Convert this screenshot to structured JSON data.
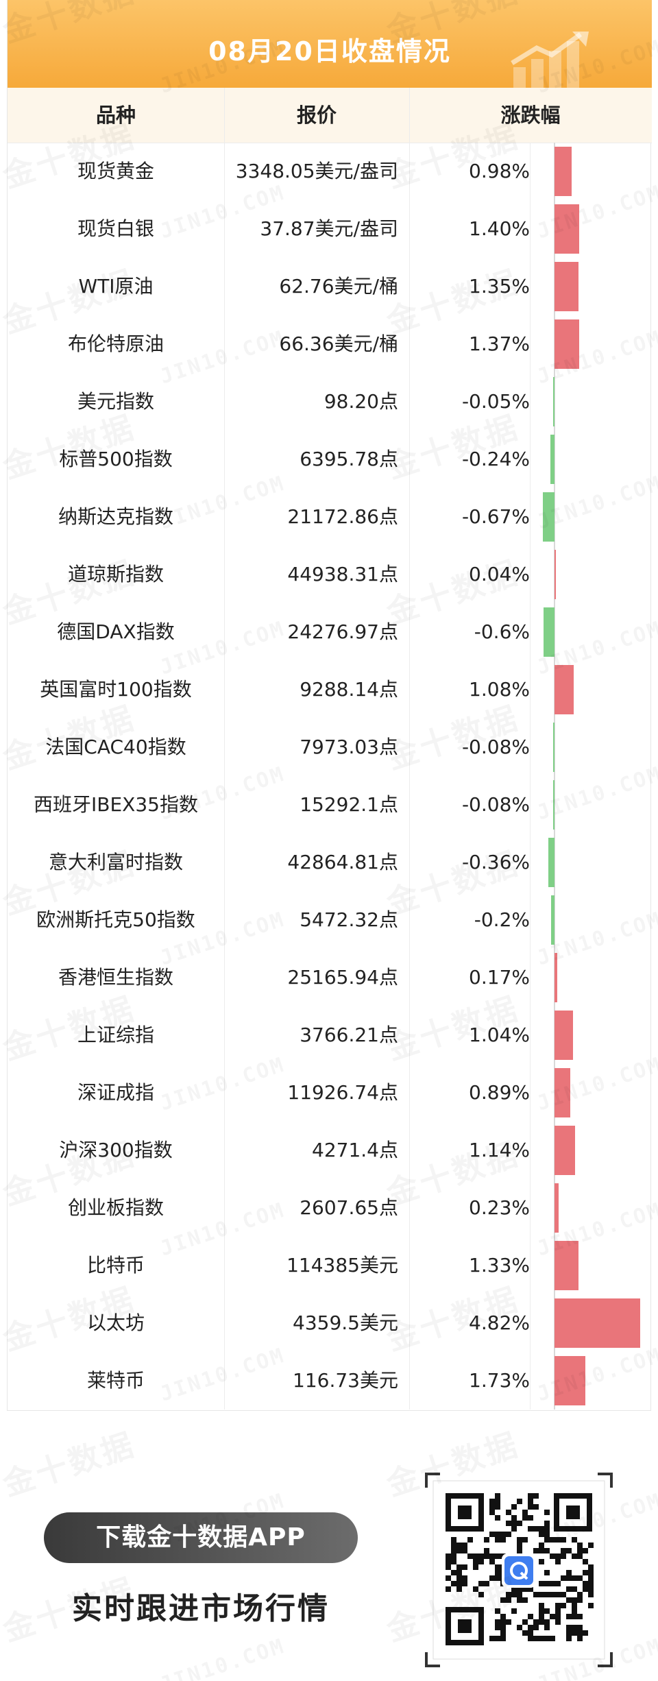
{
  "header": {
    "title": "08月20日收盘情况",
    "bg_colors": [
      "#fcc468",
      "#f6a93a"
    ]
  },
  "table": {
    "headers": [
      "品种",
      "报价",
      "涨跌幅"
    ],
    "rows": [
      {
        "name": "现货黄金",
        "price": "3348.05美元/盎司",
        "change": "0.98%",
        "value": 0.98
      },
      {
        "name": "现货白银",
        "price": "37.87美元/盎司",
        "change": "1.40%",
        "value": 1.4
      },
      {
        "name": "WTI原油",
        "price": "62.76美元/桶",
        "change": "1.35%",
        "value": 1.35
      },
      {
        "name": "布伦特原油",
        "price": "66.36美元/桶",
        "change": "1.37%",
        "value": 1.37
      },
      {
        "name": "美元指数",
        "price": "98.20点",
        "change": "-0.05%",
        "value": -0.05
      },
      {
        "name": "标普500指数",
        "price": "6395.78点",
        "change": "-0.24%",
        "value": -0.24
      },
      {
        "name": "纳斯达克指数",
        "price": "21172.86点",
        "change": "-0.67%",
        "value": -0.67
      },
      {
        "name": "道琼斯指数",
        "price": "44938.31点",
        "change": "0.04%",
        "value": 0.04
      },
      {
        "name": "德国DAX指数",
        "price": "24276.97点",
        "change": "-0.6%",
        "value": -0.6
      },
      {
        "name": "英国富时100指数",
        "price": "9288.14点",
        "change": "1.08%",
        "value": 1.08
      },
      {
        "name": "法国CAC40指数",
        "price": "7973.03点",
        "change": "-0.08%",
        "value": -0.08
      },
      {
        "name": "西班牙IBEX35指数",
        "price": "15292.1点",
        "change": "-0.08%",
        "value": -0.08
      },
      {
        "name": "意大利富时指数",
        "price": "42864.81点",
        "change": "-0.36%",
        "value": -0.36
      },
      {
        "name": "欧洲斯托克50指数",
        "price": "5472.32点",
        "change": "-0.2%",
        "value": -0.2
      },
      {
        "name": "香港恒生指数",
        "price": "25165.94点",
        "change": "0.17%",
        "value": 0.17
      },
      {
        "name": "上证综指",
        "price": "3766.21点",
        "change": "1.04%",
        "value": 1.04
      },
      {
        "name": "深证成指",
        "price": "11926.74点",
        "change": "0.89%",
        "value": 0.89
      },
      {
        "name": "沪深300指数",
        "price": "4271.4点",
        "change": "1.14%",
        "value": 1.14
      },
      {
        "name": "创业板指数",
        "price": "2607.65点",
        "change": "0.23%",
        "value": 0.23
      },
      {
        "name": "比特币",
        "price": "114385美元",
        "change": "1.33%",
        "value": 1.33
      },
      {
        "name": "以太坊",
        "price": "4359.5美元",
        "change": "4.82%",
        "value": 4.82
      },
      {
        "name": "莱特币",
        "price": "116.73美元",
        "change": "1.73%",
        "value": 1.73
      }
    ],
    "colors": {
      "up": "#e9757a",
      "down": "#7fcf86"
    }
  },
  "promo": {
    "button_label": "下载金十数据APP",
    "subtitle": "实时跟进市场行情"
  },
  "watermark": {
    "cn": "金十数据",
    "en": "JIN10.COM"
  }
}
